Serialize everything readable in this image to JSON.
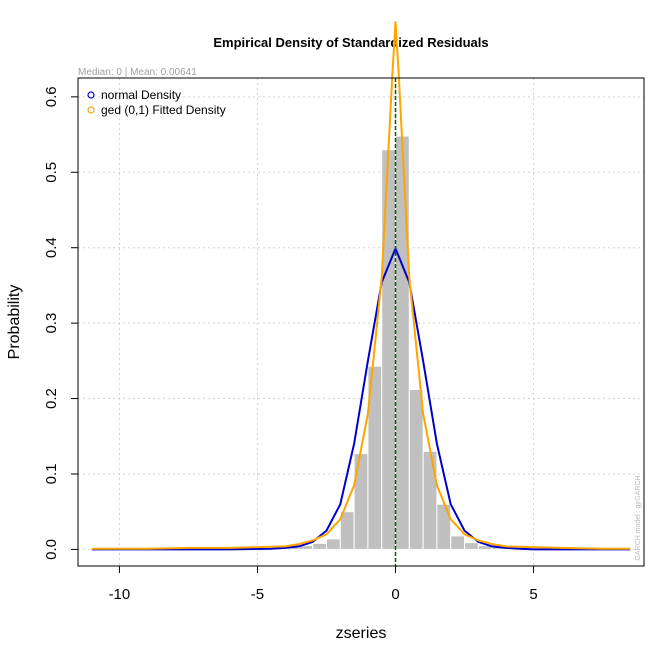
{
  "chart_data": {
    "type": "bar",
    "title": "Empirical Density of Standardized Residuals",
    "subtitle": "Median:  0 | Mean:  0.00641",
    "xlabel": "zseries",
    "ylabel": "Probability",
    "xlim": [
      -11.5,
      9
    ],
    "ylim": [
      -0.022,
      0.625
    ],
    "x_ticks": [
      -10,
      -5,
      0,
      5
    ],
    "y_ticks": [
      0.0,
      0.1,
      0.2,
      0.3,
      0.4,
      0.5,
      0.6
    ],
    "y_tick_labels": [
      "0.0",
      "0.1",
      "0.2",
      "0.3",
      "0.4",
      "0.5",
      "0.6"
    ],
    "x_tick_labels": [
      "-10",
      "-5",
      "0",
      "5"
    ],
    "grid": true,
    "legend_position": "top-left",
    "histogram": {
      "color": "#c0c0c0",
      "bins": [
        {
          "x0": -11,
          "x1": -10.5,
          "density": 0.001
        },
        {
          "x0": -10.5,
          "x1": -10,
          "density": 0.001
        },
        {
          "x0": -10,
          "x1": -9.5,
          "density": 0.001
        },
        {
          "x0": -9.5,
          "x1": -9,
          "density": 0.001
        },
        {
          "x0": -9,
          "x1": -8.5,
          "density": 0.001
        },
        {
          "x0": -8.5,
          "x1": -8,
          "density": 0.001
        },
        {
          "x0": -8,
          "x1": -7.5,
          "density": 0.001
        },
        {
          "x0": -7.5,
          "x1": -7,
          "density": 0.002
        },
        {
          "x0": -7,
          "x1": -6.5,
          "density": 0.002
        },
        {
          "x0": -6.5,
          "x1": -6,
          "density": 0.002
        },
        {
          "x0": -6,
          "x1": -5.5,
          "density": 0.002
        },
        {
          "x0": -5.5,
          "x1": -5,
          "density": 0.002
        },
        {
          "x0": -5,
          "x1": -4.5,
          "density": 0.002
        },
        {
          "x0": -4.5,
          "x1": -4,
          "density": 0.003
        },
        {
          "x0": -4,
          "x1": -3.5,
          "density": 0.003
        },
        {
          "x0": -3.5,
          "x1": -3,
          "density": 0.005
        },
        {
          "x0": -3,
          "x1": -2.5,
          "density": 0.008
        },
        {
          "x0": -2.5,
          "x1": -2,
          "density": 0.014
        },
        {
          "x0": -2,
          "x1": -1.5,
          "density": 0.05
        },
        {
          "x0": -1.5,
          "x1": -1,
          "density": 0.127
        },
        {
          "x0": -1,
          "x1": -0.5,
          "density": 0.243
        },
        {
          "x0": -0.5,
          "x1": 0,
          "density": 0.53
        },
        {
          "x0": 0,
          "x1": 0.5,
          "density": 0.548
        },
        {
          "x0": 0.5,
          "x1": 1,
          "density": 0.212
        },
        {
          "x0": 1,
          "x1": 1.5,
          "density": 0.13
        },
        {
          "x0": 1.5,
          "x1": 2,
          "density": 0.06
        },
        {
          "x0": 2,
          "x1": 2.5,
          "density": 0.018
        },
        {
          "x0": 2.5,
          "x1": 3,
          "density": 0.009
        },
        {
          "x0": 3,
          "x1": 3.5,
          "density": 0.005
        },
        {
          "x0": 3.5,
          "x1": 4,
          "density": 0.003
        },
        {
          "x0": 4,
          "x1": 4.5,
          "density": 0.003
        },
        {
          "x0": 4.5,
          "x1": 5,
          "density": 0.002
        },
        {
          "x0": 5,
          "x1": 5.5,
          "density": 0.002
        },
        {
          "x0": 5.5,
          "x1": 6,
          "density": 0.002
        },
        {
          "x0": 6,
          "x1": 6.5,
          "density": 0.002
        },
        {
          "x0": 6.5,
          "x1": 7,
          "density": 0.002
        },
        {
          "x0": 7,
          "x1": 7.5,
          "density": 0.002
        },
        {
          "x0": 7.5,
          "x1": 8,
          "density": 0.001
        },
        {
          "x0": 8,
          "x1": 8.5,
          "density": 0.001
        }
      ]
    },
    "series": [
      {
        "name": "normal Density",
        "color": "#0000cc",
        "type": "line",
        "x": [
          -11,
          -8,
          -6,
          -4.5,
          -4,
          -3.5,
          -3,
          -2.5,
          -2,
          -1.5,
          -1,
          -0.5,
          0,
          0.5,
          1,
          1.5,
          2,
          2.5,
          3,
          3.5,
          4,
          4.5,
          5,
          6,
          7,
          8.5
        ],
        "y": [
          0,
          0,
          0,
          0.001,
          0.002,
          0.004,
          0.01,
          0.025,
          0.06,
          0.14,
          0.25,
          0.354,
          0.399,
          0.354,
          0.25,
          0.14,
          0.06,
          0.025,
          0.01,
          0.004,
          0.002,
          0.001,
          0,
          0,
          0,
          0
        ]
      },
      {
        "name": "ged (0,1) Fitted Density",
        "color": "#ffa500",
        "type": "line",
        "x": [
          -11,
          -9,
          -7.5,
          -6,
          -5,
          -4,
          -3.5,
          -3,
          -2.5,
          -2,
          -1.5,
          -1,
          -0.5,
          -0.1,
          0,
          0.1,
          0.5,
          1,
          1.5,
          2,
          2.5,
          3,
          3.5,
          4,
          5,
          6,
          7.5,
          8.5
        ],
        "y": [
          0.001,
          0.001,
          0.002,
          0.002,
          0.003,
          0.004,
          0.007,
          0.012,
          0.02,
          0.04,
          0.085,
          0.18,
          0.36,
          0.64,
          0.7,
          0.64,
          0.36,
          0.18,
          0.085,
          0.04,
          0.02,
          0.012,
          0.007,
          0.004,
          0.003,
          0.002,
          0.001,
          0.001
        ]
      }
    ],
    "median_line": {
      "x": 0,
      "color": "#006400"
    },
    "footer_text": "GARCH model : gjrGARCH"
  }
}
